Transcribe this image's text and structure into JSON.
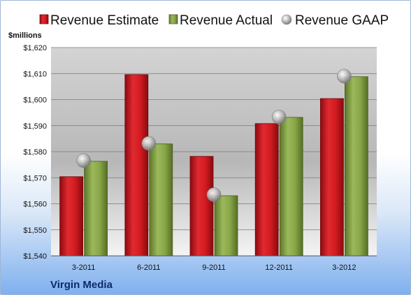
{
  "chart_data": {
    "type": "bar",
    "title": "",
    "ylabel": "$millions",
    "xlabel": "",
    "categories": [
      "3-2011",
      "6-2011",
      "9-2011",
      "12-2011",
      "3-2012"
    ],
    "series": [
      {
        "name": "Revenue Estimate",
        "type": "bar",
        "color": "#c8141b",
        "values": [
          1570.4,
          1609.6,
          1578.2,
          1590.8,
          1600.4
        ]
      },
      {
        "name": "Revenue Actual",
        "type": "bar",
        "color": "#7f9c3f",
        "values": [
          1576.3,
          1583.0,
          1563.1,
          1593.2,
          1608.8
        ]
      },
      {
        "name": "Revenue GAAP",
        "type": "marker",
        "color": "#b0b0b0",
        "values": [
          1576.6,
          1583.2,
          1563.5,
          1593.3,
          1609.0
        ]
      }
    ],
    "ylim": [
      1540,
      1620
    ],
    "yticks": [
      1540,
      1550,
      1560,
      1570,
      1580,
      1590,
      1600,
      1610,
      1620
    ],
    "ytick_labels": [
      "$1,540",
      "$1,550",
      "$1,560",
      "$1,570",
      "$1,580",
      "$1,590",
      "$1,600",
      "$1,610",
      "$1,620"
    ],
    "grid": true,
    "legend_position": "top"
  },
  "footer": {
    "brand": "Virgin Media"
  }
}
